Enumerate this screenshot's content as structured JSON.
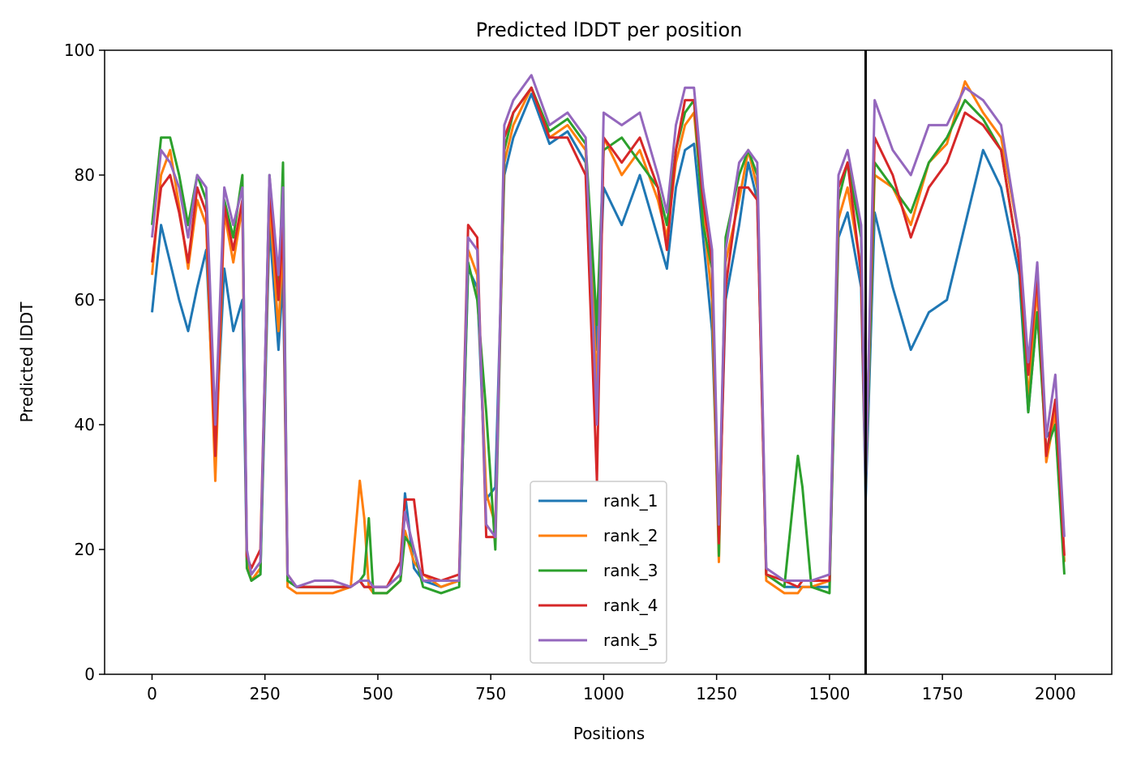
{
  "chart_data": {
    "type": "line",
    "title": "Predicted lDDT per position",
    "xlabel": "Positions",
    "ylabel": "Predicted lDDT",
    "xlim": [
      -105,
      2125
    ],
    "ylim": [
      0,
      100
    ],
    "xticks": [
      0,
      250,
      500,
      750,
      1000,
      1250,
      1500,
      1750,
      2000
    ],
    "yticks": [
      0,
      20,
      40,
      60,
      80,
      100
    ],
    "legend_position": "bottom-center",
    "grid": false,
    "vertical_line_x": 1580,
    "x_shared": [
      0,
      20,
      40,
      60,
      80,
      100,
      120,
      140,
      160,
      180,
      200,
      210,
      220,
      240,
      260,
      280,
      290,
      300,
      320,
      360,
      400,
      440,
      460,
      470,
      480,
      490,
      520,
      550,
      560,
      580,
      600,
      640,
      680,
      700,
      720,
      740,
      760,
      780,
      800,
      840,
      880,
      920,
      960,
      985,
      1000,
      1040,
      1080,
      1120,
      1140,
      1160,
      1180,
      1200,
      1220,
      1240,
      1255,
      1270,
      1300,
      1320,
      1340,
      1360,
      1400,
      1430,
      1440,
      1460,
      1500,
      1520,
      1540,
      1570,
      1580,
      1600,
      1640,
      1680,
      1720,
      1760,
      1800,
      1840,
      1880,
      1920,
      1940,
      1960,
      1980,
      2000,
      2020
    ],
    "series": [
      {
        "name": "rank_1",
        "color": "#1f77b4",
        "values": [
          58,
          72,
          66,
          60,
          55,
          62,
          68,
          36,
          65,
          55,
          60,
          18,
          15,
          16,
          72,
          52,
          64,
          15,
          14,
          14,
          14,
          14,
          15,
          14,
          14,
          14,
          14,
          16,
          29,
          17,
          15,
          14,
          15,
          65,
          62,
          28,
          30,
          80,
          86,
          93,
          85,
          87,
          82,
          52,
          78,
          72,
          80,
          70,
          65,
          78,
          84,
          85,
          70,
          55,
          22,
          60,
          72,
          82,
          76,
          16,
          14,
          14,
          14,
          14,
          14,
          70,
          74,
          62,
          28,
          74,
          62,
          52,
          58,
          60,
          72,
          84,
          78,
          64,
          42,
          58,
          38,
          40,
          18
        ]
      },
      {
        "name": "rank_2",
        "color": "#ff7f0e",
        "values": [
          64,
          80,
          84,
          75,
          65,
          76,
          72,
          31,
          74,
          66,
          75,
          18,
          15,
          17,
          76,
          55,
          70,
          14,
          13,
          13,
          13,
          14,
          31,
          25,
          14,
          13,
          13,
          15,
          23,
          18,
          16,
          14,
          15,
          68,
          64,
          29,
          24,
          82,
          88,
          94,
          86,
          88,
          84,
          46,
          86,
          80,
          84,
          76,
          70,
          82,
          88,
          90,
          74,
          60,
          18,
          66,
          76,
          84,
          78,
          15,
          13,
          13,
          14,
          14,
          15,
          73,
          78,
          65,
          30,
          80,
          78,
          72,
          82,
          85,
          95,
          90,
          86,
          70,
          44,
          62,
          34,
          42,
          18
        ]
      },
      {
        "name": "rank_3",
        "color": "#2ca02c",
        "values": [
          72,
          86,
          86,
          80,
          72,
          80,
          76,
          37,
          76,
          70,
          80,
          17,
          15,
          16,
          80,
          60,
          82,
          15,
          14,
          14,
          14,
          14,
          15,
          16,
          25,
          13,
          13,
          15,
          22,
          20,
          14,
          13,
          14,
          66,
          60,
          42,
          20,
          84,
          90,
          94,
          87,
          89,
          85,
          56,
          84,
          86,
          82,
          78,
          72,
          84,
          90,
          92,
          72,
          65,
          19,
          70,
          80,
          84,
          80,
          16,
          14,
          35,
          30,
          14,
          13,
          76,
          82,
          70,
          30,
          82,
          78,
          74,
          82,
          86,
          92,
          89,
          84,
          66,
          42,
          58,
          36,
          40,
          16
        ]
      },
      {
        "name": "rank_4",
        "color": "#d62728",
        "values": [
          66,
          78,
          80,
          74,
          66,
          78,
          74,
          35,
          75,
          68,
          76,
          19,
          17,
          20,
          78,
          60,
          72,
          16,
          14,
          14,
          14,
          14,
          15,
          14,
          14,
          14,
          14,
          18,
          28,
          28,
          16,
          15,
          16,
          72,
          70,
          22,
          22,
          86,
          90,
          94,
          86,
          86,
          80,
          31,
          86,
          82,
          86,
          78,
          68,
          84,
          92,
          92,
          76,
          66,
          21,
          62,
          78,
          78,
          76,
          16,
          15,
          14,
          15,
          15,
          15,
          78,
          82,
          64,
          32,
          86,
          80,
          70,
          78,
          82,
          90,
          88,
          84,
          66,
          48,
          64,
          35,
          44,
          19
        ]
      },
      {
        "name": "rank_5",
        "color": "#9467bd",
        "values": [
          70,
          84,
          82,
          78,
          70,
          80,
          78,
          40,
          78,
          72,
          78,
          20,
          16,
          18,
          80,
          64,
          78,
          16,
          14,
          15,
          15,
          14,
          15,
          15,
          15,
          14,
          14,
          16,
          26,
          20,
          15,
          15,
          15,
          70,
          68,
          24,
          22,
          88,
          92,
          96,
          88,
          90,
          86,
          40,
          90,
          88,
          90,
          80,
          74,
          88,
          94,
          94,
          78,
          68,
          24,
          68,
          82,
          84,
          82,
          17,
          15,
          15,
          15,
          15,
          16,
          80,
          84,
          72,
          30,
          92,
          84,
          80,
          88,
          88,
          94,
          92,
          88,
          70,
          50,
          66,
          38,
          48,
          22
        ]
      }
    ]
  }
}
